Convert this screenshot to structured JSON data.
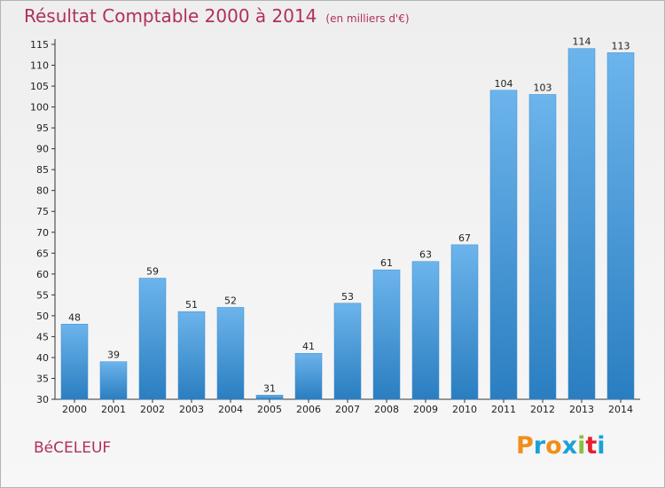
{
  "header": {
    "title": "Résultat Comptable 2000 à 2014",
    "unit": "(en milliers d'€)"
  },
  "footer": {
    "commune": "BéCELEUF",
    "logo_letters": [
      "P",
      "r",
      "o",
      "x",
      "i",
      "t",
      "i"
    ],
    "logo_colors": [
      "#f18e1a",
      "#1aa1d8",
      "#f18e1a",
      "#1aa1d8",
      "#8bbf3f",
      "#e5202e",
      "#1aa1d8"
    ]
  },
  "colors": {
    "bar_light": "#6cb4ec",
    "bar_dark": "#2a7ec0",
    "text": "#b0305a",
    "axis": "#333333"
  },
  "chart_data": {
    "type": "bar",
    "title": "Résultat Comptable 2000 à 2014",
    "xlabel": "",
    "ylabel": "",
    "categories": [
      "2000",
      "2001",
      "2002",
      "2003",
      "2004",
      "2005",
      "2006",
      "2007",
      "2008",
      "2009",
      "2010",
      "2011",
      "2012",
      "2013",
      "2014"
    ],
    "values": [
      48,
      39,
      59,
      51,
      52,
      31,
      41,
      53,
      61,
      63,
      67,
      104,
      103,
      114,
      113
    ],
    "ylim": [
      30,
      115
    ],
    "yticks": [
      30,
      35,
      40,
      45,
      50,
      55,
      60,
      65,
      70,
      75,
      80,
      85,
      90,
      95,
      100,
      105,
      110,
      115
    ],
    "grid": false
  }
}
